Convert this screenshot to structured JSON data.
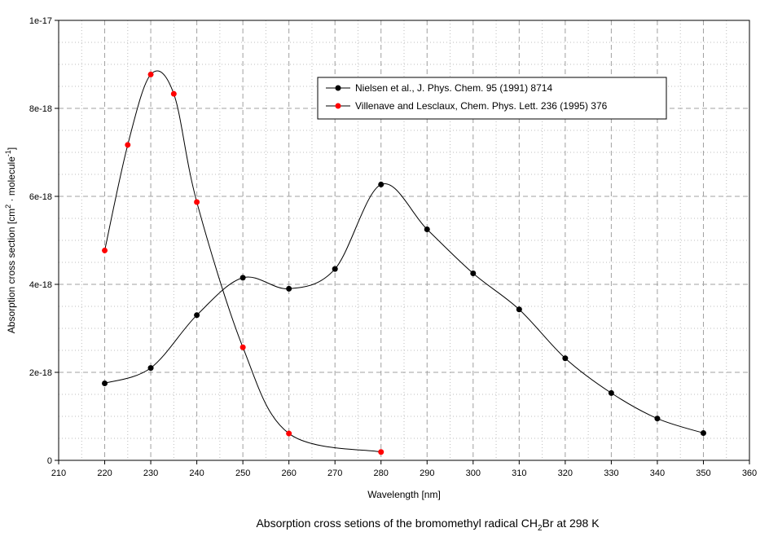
{
  "chart_data": {
    "type": "line",
    "caption": {
      "main": "Absorption cross setions of the bromomethyl radical CH",
      "sub": "2",
      "end": "Br at 298 K"
    },
    "xlabel": "Wavelength [nm]",
    "ylabel": {
      "part1": "Absorption cross section [cm",
      "sup1": "2",
      "part2": " · molecule",
      "sup2": "-1",
      "part3": "]"
    },
    "xlim": [
      210,
      360
    ],
    "ylim": [
      0,
      1e-17
    ],
    "x_ticks": [
      210,
      220,
      230,
      240,
      250,
      260,
      270,
      280,
      290,
      300,
      310,
      320,
      330,
      340,
      350,
      360
    ],
    "x_tick_labels": [
      "210",
      "220",
      "230",
      "240",
      "250",
      "260",
      "270",
      "280",
      "290",
      "300",
      "310",
      "320",
      "330",
      "340",
      "350",
      "360"
    ],
    "y_ticks": [
      0,
      2e-18,
      4e-18,
      6e-18,
      8e-18,
      1e-17
    ],
    "y_tick_labels": [
      "0",
      "2e-18",
      "4e-18",
      "6e-18",
      "8e-18",
      "1e-17"
    ],
    "grid": true,
    "legend_position": "top-right",
    "series": [
      {
        "name": "Nielsen et al., J. Phys. Chem. 95 (1991) 8714",
        "color": "#000000",
        "marker": "circle",
        "x": [
          220,
          230,
          240,
          250,
          260,
          270,
          280,
          290,
          300,
          310,
          320,
          330,
          340,
          350
        ],
        "y": [
          1.75e-18,
          2.1e-18,
          3.3e-18,
          4.15e-18,
          3.9e-18,
          4.35e-18,
          6.27e-18,
          5.25e-18,
          4.25e-18,
          3.43e-18,
          2.32e-18,
          1.53e-18,
          9.5e-19,
          6.2e-19
        ]
      },
      {
        "name": "Villenave and Lesclaux, Chem. Phys. Lett. 236 (1995) 376",
        "color": "#ff0000",
        "marker": "circle",
        "x": [
          220,
          225,
          230,
          235,
          240,
          250,
          260,
          280
        ],
        "y": [
          4.77e-18,
          7.17e-18,
          8.77e-18,
          8.33e-18,
          5.87e-18,
          2.57e-18,
          6.1e-19,
          1.9e-19
        ]
      }
    ]
  }
}
